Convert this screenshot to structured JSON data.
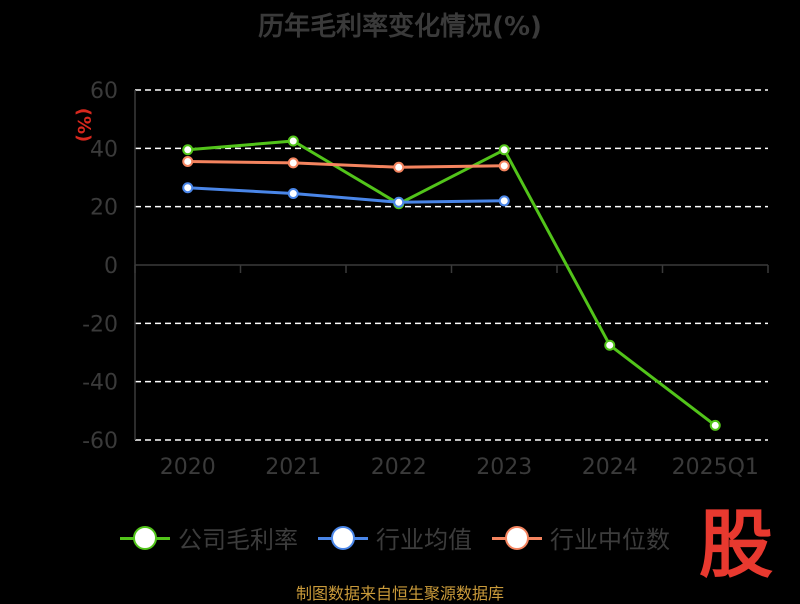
{
  "title": "历年毛利率变化情况(%)",
  "chart_data": {
    "type": "line",
    "categories": [
      "2020",
      "2021",
      "2022",
      "2023",
      "2024",
      "2025Q1"
    ],
    "ylabel": "(%)",
    "ylim": [
      -60,
      60
    ],
    "yticks": [
      "60",
      "40",
      "20",
      "0",
      "-20",
      "-40",
      "-60"
    ],
    "grid": true,
    "legend_position": "bottom",
    "series": [
      {
        "name": "公司毛利率",
        "color": "#52c41a",
        "values": [
          39.5,
          42.5,
          21.0,
          39.5,
          -27.5,
          -55.0
        ]
      },
      {
        "name": "行业均值",
        "color": "#4a86e8",
        "values": [
          26.5,
          24.5,
          21.5,
          22.0,
          null,
          null
        ]
      },
      {
        "name": "行业中位数",
        "color": "#f4845f",
        "values": [
          35.5,
          35.0,
          33.5,
          34.0,
          null,
          null
        ]
      }
    ]
  },
  "logo_text": "股",
  "source": "制图数据来自恒生聚源数据库"
}
